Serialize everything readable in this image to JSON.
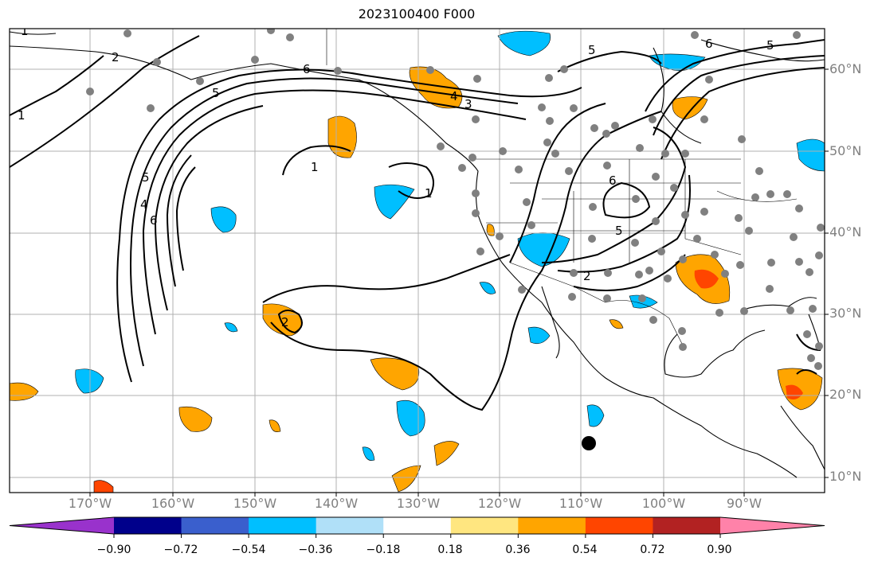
{
  "title": "2023100400 F000",
  "lat_labels": [
    "60°N",
    "50°N",
    "40°N",
    "30°N",
    "20°N",
    "10°N"
  ],
  "lon_labels": [
    "170°W",
    "160°W",
    "150°W",
    "140°W",
    "130°W",
    "120°W",
    "110°W",
    "100°W",
    "90°W"
  ],
  "colorbar": {
    "ticks": [
      "−0.90",
      "−0.72",
      "−0.54",
      "−0.36",
      "−0.18",
      "0.18",
      "0.36",
      "0.54",
      "0.72",
      "0.90"
    ],
    "colors": [
      "#9932cc",
      "#00008b",
      "#3a5fcd",
      "#00bfff",
      "#b0e0f8",
      "#ffffff",
      "#ffe680",
      "#ffa500",
      "#ff4500",
      "#b22222",
      "#ff82a9"
    ]
  },
  "contour_labels": [
    "1",
    "2",
    "5",
    "6",
    "5",
    "4",
    "3",
    "6",
    "5",
    "4",
    "6",
    "5",
    "2",
    "1",
    "1",
    "2",
    "1",
    "6",
    "5"
  ]
}
